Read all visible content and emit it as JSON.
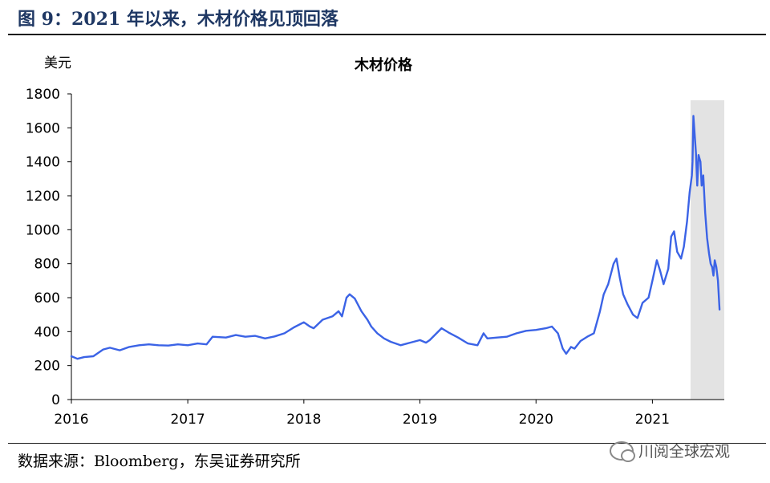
{
  "figure_title": "图 9：2021 年以来，木材价格见顶回落",
  "source_note": "数据来源：Bloomberg，东吴证券研究所",
  "watermark": "川阅全球宏观",
  "colors": {
    "line": "#3b63e6",
    "shade": "#e3e3e3",
    "title": "#1f3864"
  },
  "chart_data": {
    "type": "line",
    "title": "木材价格",
    "ylabel": "美元",
    "xlabel": "",
    "ylim": [
      0,
      1800
    ],
    "xlim": [
      "2016-01-01",
      "2021-08-15"
    ],
    "yticks": [
      0,
      200,
      400,
      600,
      800,
      1000,
      1200,
      1400,
      1600,
      1800
    ],
    "xticks": [
      "2016",
      "2017",
      "2018",
      "2019",
      "2020",
      "2021"
    ],
    "grid": false,
    "legend": "none",
    "shaded_region": {
      "x": [
        "2021-05-01",
        "2021-08-15"
      ]
    },
    "series": [
      {
        "points": [
          [
            "2016-01-01",
            255
          ],
          [
            "2016-01-20",
            240
          ],
          [
            "2016-02-10",
            250
          ],
          [
            "2016-03-10",
            255
          ],
          [
            "2016-04-10",
            295
          ],
          [
            "2016-05-01",
            305
          ],
          [
            "2016-06-01",
            290
          ],
          [
            "2016-07-01",
            310
          ],
          [
            "2016-08-01",
            320
          ],
          [
            "2016-09-01",
            325
          ],
          [
            "2016-10-01",
            320
          ],
          [
            "2016-11-01",
            318
          ],
          [
            "2016-12-01",
            325
          ],
          [
            "2017-01-01",
            320
          ],
          [
            "2017-02-01",
            330
          ],
          [
            "2017-03-01",
            325
          ],
          [
            "2017-03-20",
            370
          ],
          [
            "2017-05-01",
            365
          ],
          [
            "2017-06-01",
            380
          ],
          [
            "2017-07-01",
            370
          ],
          [
            "2017-08-01",
            375
          ],
          [
            "2017-09-01",
            360
          ],
          [
            "2017-10-01",
            372
          ],
          [
            "2017-11-01",
            390
          ],
          [
            "2017-12-01",
            425
          ],
          [
            "2018-01-01",
            455
          ],
          [
            "2018-01-20",
            430
          ],
          [
            "2018-02-01",
            420
          ],
          [
            "2018-03-01",
            470
          ],
          [
            "2018-04-01",
            490
          ],
          [
            "2018-04-20",
            520
          ],
          [
            "2018-05-01",
            490
          ],
          [
            "2018-05-15",
            600
          ],
          [
            "2018-05-25",
            620
          ],
          [
            "2018-06-10",
            595
          ],
          [
            "2018-07-01",
            520
          ],
          [
            "2018-07-20",
            470
          ],
          [
            "2018-08-01",
            430
          ],
          [
            "2018-08-20",
            390
          ],
          [
            "2018-09-10",
            360
          ],
          [
            "2018-10-01",
            340
          ],
          [
            "2018-11-01",
            320
          ],
          [
            "2018-12-01",
            335
          ],
          [
            "2019-01-01",
            350
          ],
          [
            "2019-01-20",
            335
          ],
          [
            "2019-02-01",
            350
          ],
          [
            "2019-03-10",
            420
          ],
          [
            "2019-04-01",
            395
          ],
          [
            "2019-05-01",
            365
          ],
          [
            "2019-06-01",
            330
          ],
          [
            "2019-07-01",
            320
          ],
          [
            "2019-07-20",
            390
          ],
          [
            "2019-08-01",
            360
          ],
          [
            "2019-09-01",
            365
          ],
          [
            "2019-10-01",
            370
          ],
          [
            "2019-11-01",
            390
          ],
          [
            "2019-12-01",
            405
          ],
          [
            "2020-01-01",
            410
          ],
          [
            "2020-02-01",
            420
          ],
          [
            "2020-02-20",
            430
          ],
          [
            "2020-03-10",
            390
          ],
          [
            "2020-03-25",
            300
          ],
          [
            "2020-04-05",
            270
          ],
          [
            "2020-04-20",
            310
          ],
          [
            "2020-05-01",
            300
          ],
          [
            "2020-05-20",
            345
          ],
          [
            "2020-06-10",
            370
          ],
          [
            "2020-07-01",
            390
          ],
          [
            "2020-07-20",
            520
          ],
          [
            "2020-08-01",
            620
          ],
          [
            "2020-08-15",
            680
          ],
          [
            "2020-09-01",
            800
          ],
          [
            "2020-09-10",
            830
          ],
          [
            "2020-09-20",
            720
          ],
          [
            "2020-10-01",
            620
          ],
          [
            "2020-10-15",
            560
          ],
          [
            "2020-11-01",
            500
          ],
          [
            "2020-11-15",
            480
          ],
          [
            "2020-12-01",
            570
          ],
          [
            "2020-12-20",
            600
          ],
          [
            "2021-01-01",
            700
          ],
          [
            "2021-01-15",
            820
          ],
          [
            "2021-01-25",
            760
          ],
          [
            "2021-02-05",
            680
          ],
          [
            "2021-02-20",
            770
          ],
          [
            "2021-03-01",
            960
          ],
          [
            "2021-03-10",
            990
          ],
          [
            "2021-03-20",
            870
          ],
          [
            "2021-04-01",
            830
          ],
          [
            "2021-04-10",
            900
          ],
          [
            "2021-04-20",
            1050
          ],
          [
            "2021-04-28",
            1220
          ],
          [
            "2021-05-05",
            1320
          ],
          [
            "2021-05-07",
            1400
          ],
          [
            "2021-05-10",
            1670
          ],
          [
            "2021-05-14",
            1560
          ],
          [
            "2021-05-18",
            1450
          ],
          [
            "2021-05-22",
            1260
          ],
          [
            "2021-05-26",
            1440
          ],
          [
            "2021-06-01",
            1400
          ],
          [
            "2021-06-05",
            1260
          ],
          [
            "2021-06-10",
            1320
          ],
          [
            "2021-06-16",
            1100
          ],
          [
            "2021-06-22",
            950
          ],
          [
            "2021-06-28",
            860
          ],
          [
            "2021-07-03",
            800
          ],
          [
            "2021-07-08",
            780
          ],
          [
            "2021-07-12",
            730
          ],
          [
            "2021-07-16",
            820
          ],
          [
            "2021-07-21",
            780
          ],
          [
            "2021-07-26",
            700
          ],
          [
            "2021-07-31",
            530
          ]
        ]
      }
    ]
  }
}
